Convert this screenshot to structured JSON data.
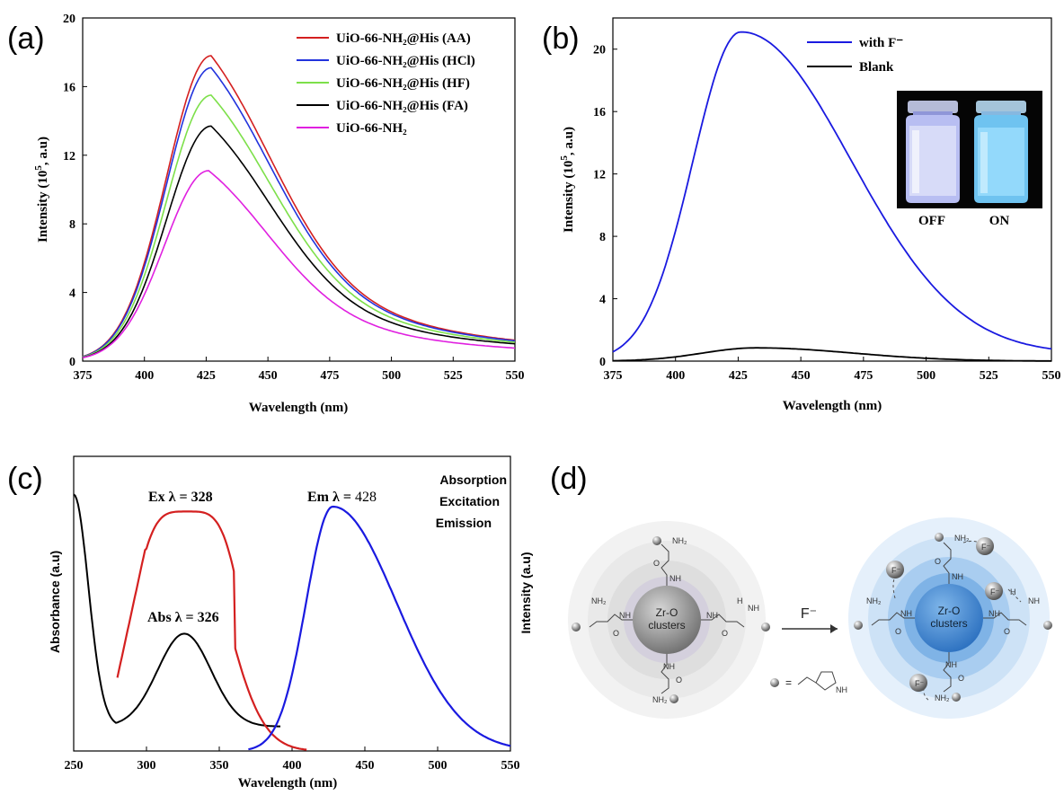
{
  "panels": {
    "a": {
      "label": "(a)"
    },
    "b": {
      "label": "(b)"
    },
    "c": {
      "label": "(c)"
    },
    "d": {
      "label": "(d)"
    }
  },
  "chart_data": [
    {
      "id": "a",
      "type": "line",
      "xlabel": "Wavelength (nm)",
      "ylabel_main": "Intensity (10",
      "ylabel_sup": "5",
      "ylabel_tail": ", a.u)",
      "xlim": [
        375,
        550
      ],
      "ylim": [
        0,
        20
      ],
      "xticks": [
        375,
        400,
        425,
        450,
        475,
        500,
        525,
        550
      ],
      "yticks": [
        0,
        4,
        8,
        12,
        16,
        20
      ],
      "legend_position": "top-right",
      "series": [
        {
          "name": "UiO-66-NH₂@His (AA)",
          "color": "#d42020",
          "peak_x": 427,
          "peak_y": 17.8,
          "end_y": 0.3
        },
        {
          "name": "UiO-66-NH₂@His (HCl)",
          "color": "#2233dd",
          "peak_x": 427,
          "peak_y": 17.1,
          "end_y": 0.3
        },
        {
          "name": "UiO-66-NH₂@His (HF)",
          "color": "#7de04a",
          "peak_x": 427,
          "peak_y": 15.5,
          "end_y": 0.3
        },
        {
          "name": "UiO-66-NH₂@His (FA)",
          "color": "#000000",
          "peak_x": 427,
          "peak_y": 13.7,
          "end_y": 0.3
        },
        {
          "name": "UiO-66-NH₂",
          "color": "#e020e0",
          "peak_x": 426,
          "peak_y": 11.1,
          "end_y": 0.2
        }
      ]
    },
    {
      "id": "b",
      "type": "line",
      "xlabel": "Wavelength (nm)",
      "ylabel_main": "Intensity (10",
      "ylabel_sup": "5",
      "ylabel_tail": ", a.u)",
      "xlim": [
        375,
        550
      ],
      "ylim": [
        0,
        22
      ],
      "xticks": [
        375,
        400,
        425,
        450,
        475,
        500,
        525,
        550
      ],
      "yticks": [
        0,
        4,
        8,
        12,
        16,
        20
      ],
      "legend_position": "top-left",
      "series": [
        {
          "name": "with F⁻",
          "color": "#1a1ae0",
          "peak_x": 426,
          "peak_y": 21.1,
          "end_y": 0.4
        },
        {
          "name": "Blank",
          "color": "#000000",
          "peak_x": 432,
          "peak_y": 0.85,
          "end_y": 0.0
        }
      ],
      "inset": {
        "labels": [
          "OFF",
          "ON"
        ]
      }
    },
    {
      "id": "c",
      "type": "line",
      "xlabel": "Wavelength (nm)",
      "ylabel_left": "Absorbance (a.u)",
      "ylabel_right": "Intensity (a.u)",
      "xlim": [
        250,
        550
      ],
      "xticks": [
        250,
        300,
        350,
        400,
        450,
        500,
        550
      ],
      "legend": [
        "Absorption",
        "Excitation",
        "Emission"
      ],
      "annotations": {
        "ex": "Ex λ = 328",
        "abs": "Abs λ = 326",
        "em_main": "Em λ = ",
        "em_val": "428"
      },
      "series": [
        {
          "name": "Absorption",
          "color": "#000000",
          "peak_x": 326
        },
        {
          "name": "Excitation",
          "color": "#d42020",
          "peak_x": 328
        },
        {
          "name": "Emission",
          "color": "#1a1ae0",
          "peak_x": 428
        }
      ]
    }
  ],
  "scheme": {
    "core_label_1": "Zr-O",
    "core_label_2": "clusters",
    "arrow_label": "F⁻",
    "equals": "=",
    "nh2": "NH₂",
    "nh": "NH",
    "o": "O",
    "h": "H",
    "f_ion": "F⁻",
    "colors": {
      "gray_core": "#8a8a8a",
      "blue_core": "#3a86d4"
    }
  }
}
